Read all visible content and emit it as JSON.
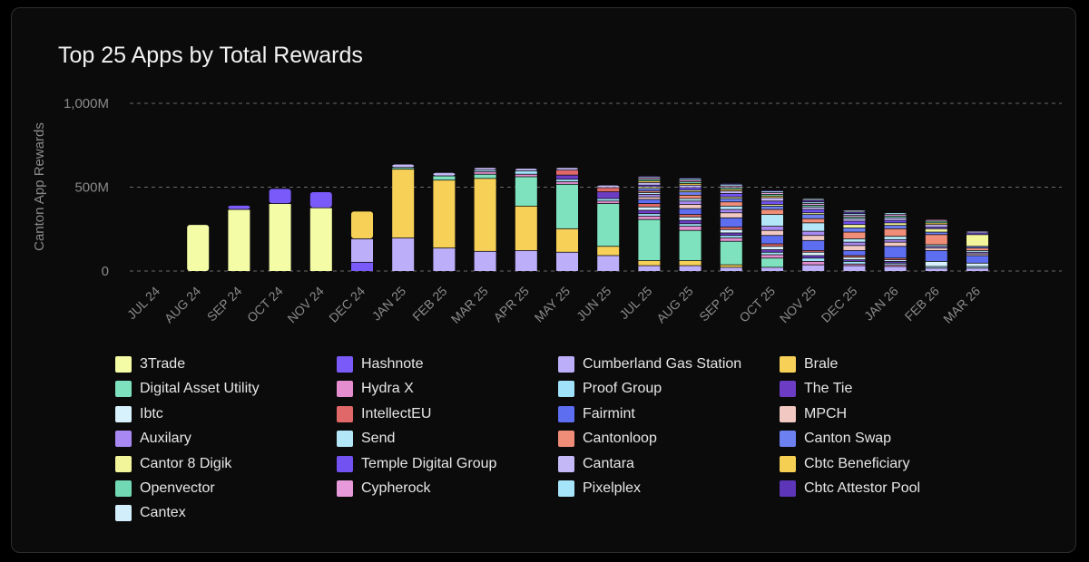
{
  "chart_data": {
    "type": "bar",
    "stacked": true,
    "title": "Top 25 Apps by Total Rewards",
    "ylabel": "Canton App Rewards",
    "xlabel": "",
    "ylim": [
      0,
      1000
    ],
    "yticks": [
      0,
      500,
      1000
    ],
    "ytick_labels": [
      "0",
      "500M",
      "1,000M"
    ],
    "grid": true,
    "legend_position": "bottom",
    "categories": [
      "JUL 24",
      "AUG 24",
      "SEP 24",
      "OCT 24",
      "NOV 24",
      "DEC 24",
      "JAN 25",
      "FEB 25",
      "MAR 25",
      "APR 25",
      "MAY 25",
      "JUN 25",
      "JUL 25",
      "AUG 25",
      "SEP 25",
      "OCT 25",
      "NOV 25",
      "DEC 25",
      "JAN 26",
      "FEB 26",
      "MAR 26"
    ],
    "series": [
      {
        "name": "3Trade",
        "color": "#f4fca6",
        "values": [
          0,
          275,
          365,
          400,
          375,
          0,
          0,
          0,
          0,
          0,
          0,
          0,
          0,
          0,
          0,
          0,
          0,
          0,
          0,
          0,
          0
        ]
      },
      {
        "name": "Hashnote",
        "color": "#7a5af8",
        "values": [
          0,
          0,
          25,
          90,
          95,
          50,
          0,
          0,
          0,
          0,
          0,
          0,
          0,
          0,
          0,
          0,
          0,
          0,
          0,
          0,
          0
        ]
      },
      {
        "name": "Cumberland Gas Station",
        "color": "#bcaef8",
        "values": [
          0,
          0,
          0,
          0,
          0,
          140,
          195,
          135,
          115,
          120,
          110,
          90,
          30,
          30,
          20,
          20,
          35,
          30,
          25,
          15,
          15
        ]
      },
      {
        "name": "Brale",
        "color": "#f7d157",
        "values": [
          0,
          0,
          0,
          0,
          0,
          165,
          410,
          405,
          435,
          265,
          140,
          55,
          30,
          30,
          15,
          0,
          0,
          0,
          0,
          0,
          0
        ]
      },
      {
        "name": "Digital Asset Utility",
        "color": "#7ee2bf",
        "values": [
          0,
          0,
          0,
          0,
          0,
          0,
          10,
          25,
          25,
          175,
          265,
          255,
          245,
          180,
          140,
          55,
          0,
          0,
          0,
          0,
          0
        ]
      },
      {
        "name": "Hydra X",
        "color": "#e48ed0",
        "values": [
          0,
          0,
          0,
          0,
          0,
          0,
          0,
          0,
          15,
          15,
          15,
          15,
          20,
          25,
          20,
          20,
          20,
          10,
          10,
          0,
          0
        ]
      },
      {
        "name": "Proof Group",
        "color": "#9fe2fa",
        "values": [
          0,
          0,
          0,
          0,
          0,
          0,
          0,
          0,
          10,
          20,
          15,
          15,
          15,
          15,
          15,
          15,
          20,
          15,
          10,
          10,
          10
        ]
      },
      {
        "name": "The Tie",
        "color": "#6c3cc5",
        "values": [
          0,
          0,
          0,
          0,
          0,
          0,
          0,
          0,
          0,
          0,
          25,
          40,
          20,
          20,
          15,
          15,
          15,
          10,
          10,
          0,
          0
        ]
      },
      {
        "name": "Ibtc",
        "color": "#d7f1fd",
        "values": [
          0,
          0,
          0,
          0,
          0,
          0,
          0,
          0,
          0,
          0,
          0,
          0,
          20,
          20,
          20,
          20,
          20,
          15,
          10,
          30,
          20
        ]
      },
      {
        "name": "IntellectEU",
        "color": "#e06868",
        "values": [
          0,
          0,
          0,
          0,
          0,
          0,
          0,
          0,
          0,
          0,
          30,
          25,
          20,
          15,
          15,
          15,
          10,
          10,
          10,
          0,
          0
        ]
      },
      {
        "name": "Fairmint",
        "color": "#5d6ef0",
        "values": [
          0,
          0,
          0,
          0,
          0,
          0,
          0,
          0,
          0,
          0,
          0,
          0,
          25,
          35,
          55,
          50,
          60,
          30,
          70,
          65,
          45
        ]
      },
      {
        "name": "MPCH",
        "color": "#f1c9c2",
        "values": [
          0,
          0,
          0,
          0,
          0,
          0,
          0,
          0,
          0,
          0,
          0,
          0,
          15,
          25,
          30,
          30,
          30,
          30,
          25,
          15,
          10
        ]
      },
      {
        "name": "Auxilary",
        "color": "#a889f3",
        "values": [
          0,
          0,
          0,
          0,
          0,
          0,
          0,
          0,
          0,
          0,
          0,
          0,
          15,
          20,
          20,
          25,
          25,
          20,
          15,
          10,
          10
        ]
      },
      {
        "name": "Send",
        "color": "#b3e7f8",
        "values": [
          0,
          0,
          0,
          0,
          0,
          0,
          0,
          0,
          0,
          0,
          0,
          0,
          10,
          15,
          20,
          70,
          50,
          20,
          20,
          10,
          10
        ]
      },
      {
        "name": "Cantonloop",
        "color": "#ef8d78",
        "values": [
          0,
          0,
          0,
          0,
          0,
          0,
          0,
          0,
          0,
          0,
          0,
          0,
          10,
          20,
          25,
          30,
          25,
          40,
          45,
          60,
          15
        ]
      },
      {
        "name": "Canton Swap",
        "color": "#6d80f0",
        "values": [
          0,
          0,
          0,
          0,
          0,
          0,
          0,
          0,
          0,
          0,
          0,
          0,
          15,
          20,
          20,
          20,
          25,
          25,
          20,
          15,
          10
        ]
      },
      {
        "name": "Cantor 8 Digik",
        "color": "#f2f59a",
        "values": [
          0,
          0,
          0,
          0,
          0,
          0,
          0,
          0,
          0,
          0,
          0,
          0,
          10,
          10,
          10,
          10,
          10,
          20,
          15,
          20,
          70
        ]
      },
      {
        "name": "Temple Digital Group",
        "color": "#7252f0",
        "values": [
          0,
          0,
          0,
          0,
          0,
          0,
          0,
          0,
          0,
          0,
          0,
          0,
          10,
          15,
          20,
          20,
          20,
          20,
          15,
          10,
          10
        ]
      },
      {
        "name": "Cantara",
        "color": "#c4b8f7",
        "values": [
          0,
          0,
          0,
          0,
          0,
          0,
          20,
          20,
          15,
          15,
          15,
          15,
          15,
          15,
          15,
          20,
          15,
          15,
          15,
          15,
          10
        ]
      },
      {
        "name": "Cbtc Beneficiary",
        "color": "#f5cf52",
        "values": [
          0,
          0,
          0,
          0,
          0,
          0,
          0,
          0,
          0,
          0,
          0,
          0,
          10,
          10,
          10,
          10,
          0,
          0,
          0,
          10,
          0
        ]
      },
      {
        "name": "Openvector",
        "color": "#71d9b4",
        "values": [
          0,
          0,
          0,
          0,
          0,
          0,
          0,
          0,
          0,
          0,
          0,
          0,
          10,
          10,
          10,
          10,
          10,
          10,
          10,
          10,
          0
        ]
      },
      {
        "name": "Cypherock",
        "color": "#e69ad9",
        "values": [
          0,
          0,
          0,
          0,
          0,
          0,
          0,
          0,
          0,
          0,
          0,
          0,
          10,
          10,
          10,
          10,
          10,
          10,
          10,
          10,
          0
        ]
      },
      {
        "name": "Pixelplex",
        "color": "#a6e4f9",
        "values": [
          0,
          0,
          0,
          0,
          0,
          0,
          0,
          0,
          0,
          0,
          0,
          0,
          5,
          10,
          10,
          10,
          10,
          10,
          10,
          0,
          0
        ]
      },
      {
        "name": "Cbtc Attestor Pool",
        "color": "#5d35b8",
        "values": [
          0,
          0,
          0,
          0,
          0,
          0,
          0,
          0,
          0,
          0,
          0,
          0,
          5,
          5,
          5,
          5,
          10,
          10,
          0,
          0,
          0
        ]
      },
      {
        "name": "Cantex",
        "color": "#d2eefb",
        "values": [
          0,
          0,
          0,
          0,
          0,
          0,
          0,
          0,
          0,
          0,
          0,
          0,
          0,
          0,
          0,
          0,
          10,
          10,
          0,
          0,
          0
        ]
      }
    ]
  }
}
